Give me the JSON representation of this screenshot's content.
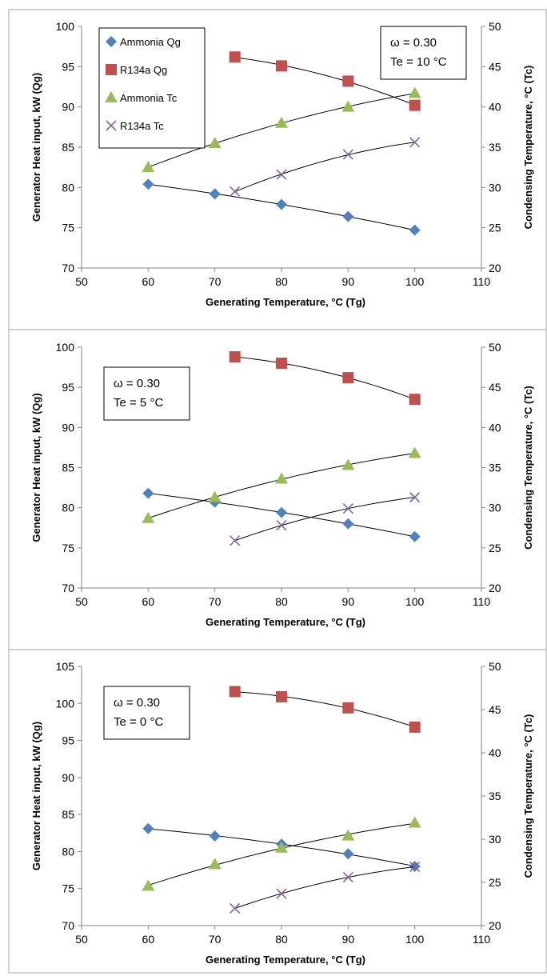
{
  "colors": {
    "ammonia_qg": "#4f81bd",
    "r134a_qg": "#c0504d",
    "ammonia_tc": "#9bbb59",
    "r134a_tc": "#8064a2",
    "axis": "#868686",
    "border": "#a6a6a6"
  },
  "chart_data": [
    {
      "type": "scatter",
      "xlabel": "Generating Temperature, °C (Tg)",
      "ylabel": "Generator Heat input, kW (Qg)",
      "y2label": "Condensing Temperature, °C (Tc)",
      "xlim": [
        50,
        110
      ],
      "ylim": [
        70,
        100
      ],
      "y2lim": [
        20,
        50
      ],
      "xticks": [
        "50",
        "60",
        "70",
        "80",
        "90",
        "100",
        "110"
      ],
      "yticks": [
        "70",
        "75",
        "80",
        "85",
        "90",
        "95",
        "100"
      ],
      "y2ticks": [
        "20",
        "25",
        "30",
        "35",
        "40",
        "45",
        "50"
      ],
      "legend": [
        "Ammonia Qg",
        "R134a Qg",
        "Ammonia Tc",
        "R134a Tc"
      ],
      "legend_position": "top-left",
      "annotation": [
        "ω = 0.30",
        "Te = 10 °C"
      ],
      "annotation_position": "top-right",
      "series": [
        {
          "name": "Ammonia Qg",
          "axis": "left",
          "marker": "diamond",
          "color": "#4f81bd",
          "x": [
            60,
            70,
            80,
            90,
            100
          ],
          "y": [
            80.4,
            79.2,
            77.9,
            76.4,
            74.7
          ]
        },
        {
          "name": "R134a Qg",
          "axis": "left",
          "marker": "square",
          "color": "#c0504d",
          "x": [
            73,
            80,
            90,
            100
          ],
          "y": [
            96.2,
            95.1,
            93.2,
            90.2
          ]
        },
        {
          "name": "Ammonia Tc",
          "axis": "right",
          "marker": "triangle",
          "color": "#9bbb59",
          "x": [
            60,
            70,
            80,
            90,
            100
          ],
          "y": [
            32.5,
            35.5,
            38.0,
            40.0,
            41.7
          ]
        },
        {
          "name": "R134a Tc",
          "axis": "right",
          "marker": "cross",
          "color": "#8064a2",
          "x": [
            73,
            80,
            90,
            100
          ],
          "y": [
            29.5,
            31.6,
            34.1,
            35.6
          ]
        }
      ]
    },
    {
      "type": "scatter",
      "xlabel": "Generating Temperature, °C (Tg)",
      "ylabel": "Generator Heat input, kW (Qg)",
      "y2label": "Condensing Temperature, °C (Tc)",
      "xlim": [
        50,
        110
      ],
      "ylim": [
        70,
        100
      ],
      "y2lim": [
        20,
        50
      ],
      "xticks": [
        "50",
        "60",
        "70",
        "80",
        "90",
        "100",
        "110"
      ],
      "yticks": [
        "70",
        "75",
        "80",
        "85",
        "90",
        "95",
        "100"
      ],
      "y2ticks": [
        "20",
        "25",
        "30",
        "35",
        "40",
        "45",
        "50"
      ],
      "annotation": [
        "ω = 0.30",
        "Te = 5 °C"
      ],
      "annotation_position": "top-left",
      "series": [
        {
          "name": "Ammonia Qg",
          "axis": "left",
          "marker": "diamond",
          "color": "#4f81bd",
          "x": [
            60,
            70,
            80,
            90,
            100
          ],
          "y": [
            81.8,
            80.7,
            79.4,
            78.0,
            76.4
          ]
        },
        {
          "name": "R134a Qg",
          "axis": "left",
          "marker": "square",
          "color": "#c0504d",
          "x": [
            73,
            80,
            90,
            100
          ],
          "y": [
            98.8,
            98.0,
            96.2,
            93.5
          ]
        },
        {
          "name": "Ammonia Tc",
          "axis": "right",
          "marker": "triangle",
          "color": "#9bbb59",
          "x": [
            60,
            70,
            80,
            90,
            100
          ],
          "y": [
            28.7,
            31.3,
            33.6,
            35.3,
            36.8
          ]
        },
        {
          "name": "R134a Tc",
          "axis": "right",
          "marker": "cross",
          "color": "#8064a2",
          "x": [
            73,
            80,
            90,
            100
          ],
          "y": [
            25.9,
            27.8,
            29.9,
            31.3
          ]
        }
      ]
    },
    {
      "type": "scatter",
      "xlabel": "Generating Temperature, °C (Tg)",
      "ylabel": "Generator Heat input, kW (Qg)",
      "y2label": "Condensing Temperature, °C (Tc)",
      "xlim": [
        50,
        110
      ],
      "ylim": [
        70,
        105
      ],
      "y2lim": [
        20,
        50
      ],
      "xticks": [
        "50",
        "60",
        "70",
        "80",
        "90",
        "100",
        "110"
      ],
      "yticks": [
        "70",
        "75",
        "80",
        "85",
        "90",
        "95",
        "100",
        "105"
      ],
      "y2ticks": [
        "20",
        "25",
        "30",
        "35",
        "40",
        "45",
        "50"
      ],
      "annotation": [
        "ω = 0.30",
        "Te = 0 °C"
      ],
      "annotation_position": "top-left",
      "series": [
        {
          "name": "Ammonia Qg",
          "axis": "left",
          "marker": "diamond",
          "color": "#4f81bd",
          "x": [
            60,
            70,
            80,
            90,
            100
          ],
          "y": [
            83.1,
            82.1,
            81.0,
            79.7,
            78.0
          ]
        },
        {
          "name": "R134a Qg",
          "axis": "left",
          "marker": "square",
          "color": "#c0504d",
          "x": [
            73,
            80,
            90,
            100
          ],
          "y": [
            101.6,
            100.9,
            99.4,
            96.8
          ]
        },
        {
          "name": "Ammonia Tc",
          "axis": "right",
          "marker": "triangle",
          "color": "#9bbb59",
          "x": [
            60,
            70,
            80,
            90,
            100
          ],
          "y": [
            24.6,
            27.1,
            29.0,
            30.4,
            31.9
          ]
        },
        {
          "name": "R134a Tc",
          "axis": "right",
          "marker": "cross",
          "color": "#8064a2",
          "x": [
            73,
            80,
            90,
            100
          ],
          "y": [
            22.0,
            23.7,
            25.6,
            26.8
          ]
        }
      ]
    }
  ]
}
